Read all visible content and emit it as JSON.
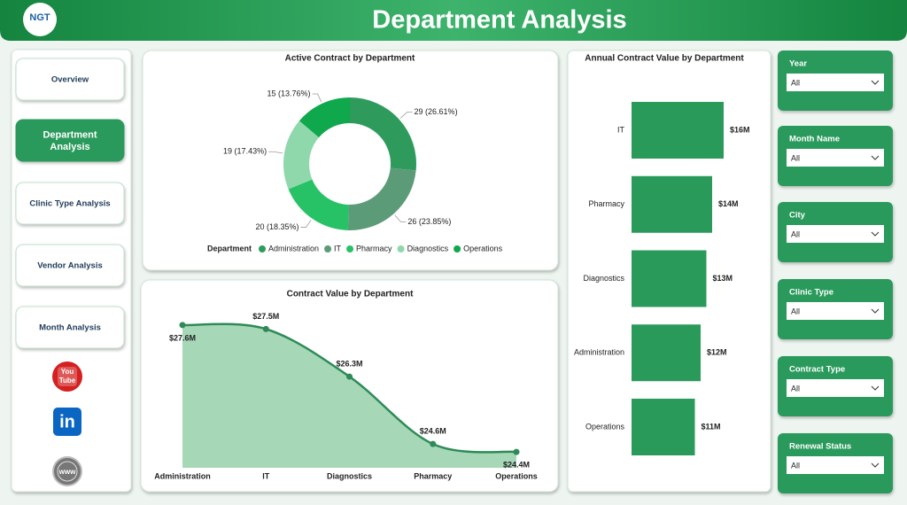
{
  "header": {
    "title": "Department Analysis",
    "logo": "NGT"
  },
  "nav": [
    "Overview",
    "Department Analysis",
    "Clinic Type Analysis",
    "Vendor Analysis",
    "Month Analysis"
  ],
  "active_nav": 1,
  "social": {
    "youtube": [
      "You",
      "Tube"
    ],
    "linkedin": "in",
    "web": "www"
  },
  "chart_data": [
    {
      "type": "pie",
      "title": "Active Contract by Department",
      "legend_title": "Department",
      "categories": [
        "Administration",
        "IT",
        "Pharmacy",
        "Diagnostics",
        "Operations"
      ],
      "values": [
        29,
        26,
        20,
        19,
        15
      ],
      "value_labels": [
        "29 (26.61%)",
        "26 (23.85%)",
        "20 (18.35%)",
        "19 (17.43%)",
        "15 (13.76%)"
      ],
      "colors": [
        "#2e9b5c",
        "#5c9b78",
        "#27c266",
        "#8fd8ab",
        "#0fa84c"
      ]
    },
    {
      "type": "area",
      "title": "Contract Value by Department",
      "categories": [
        "Administration",
        "IT",
        "Diagnostics",
        "Pharmacy",
        "Operations"
      ],
      "values": [
        27.6,
        27.5,
        26.3,
        24.6,
        24.4
      ],
      "value_labels": [
        "$27.6M",
        "$27.5M",
        "$26.3M",
        "$24.6M",
        "$24.4M"
      ],
      "ylim": [
        24,
        28
      ],
      "color": "#2e8b57",
      "fill": "#a6d8b8"
    },
    {
      "type": "hbar",
      "title": "Annual Contract Value by Department",
      "categories": [
        "IT",
        "Pharmacy",
        "Diagnostics",
        "Administration",
        "Operations"
      ],
      "values": [
        16,
        14,
        13,
        12,
        11
      ],
      "value_labels": [
        "$16M",
        "$14M",
        "$13M",
        "$12M",
        "$11M"
      ],
      "xlim": [
        0,
        16
      ],
      "color": "#2a9a5b"
    }
  ],
  "filters": [
    {
      "label": "Year",
      "value": "All"
    },
    {
      "label": "Month Name",
      "value": "All"
    },
    {
      "label": "City",
      "value": "All"
    },
    {
      "label": "Clinic Type",
      "value": "All"
    },
    {
      "label": "Contract Type",
      "value": "All"
    },
    {
      "label": "Renewal Status",
      "value": "All"
    }
  ]
}
